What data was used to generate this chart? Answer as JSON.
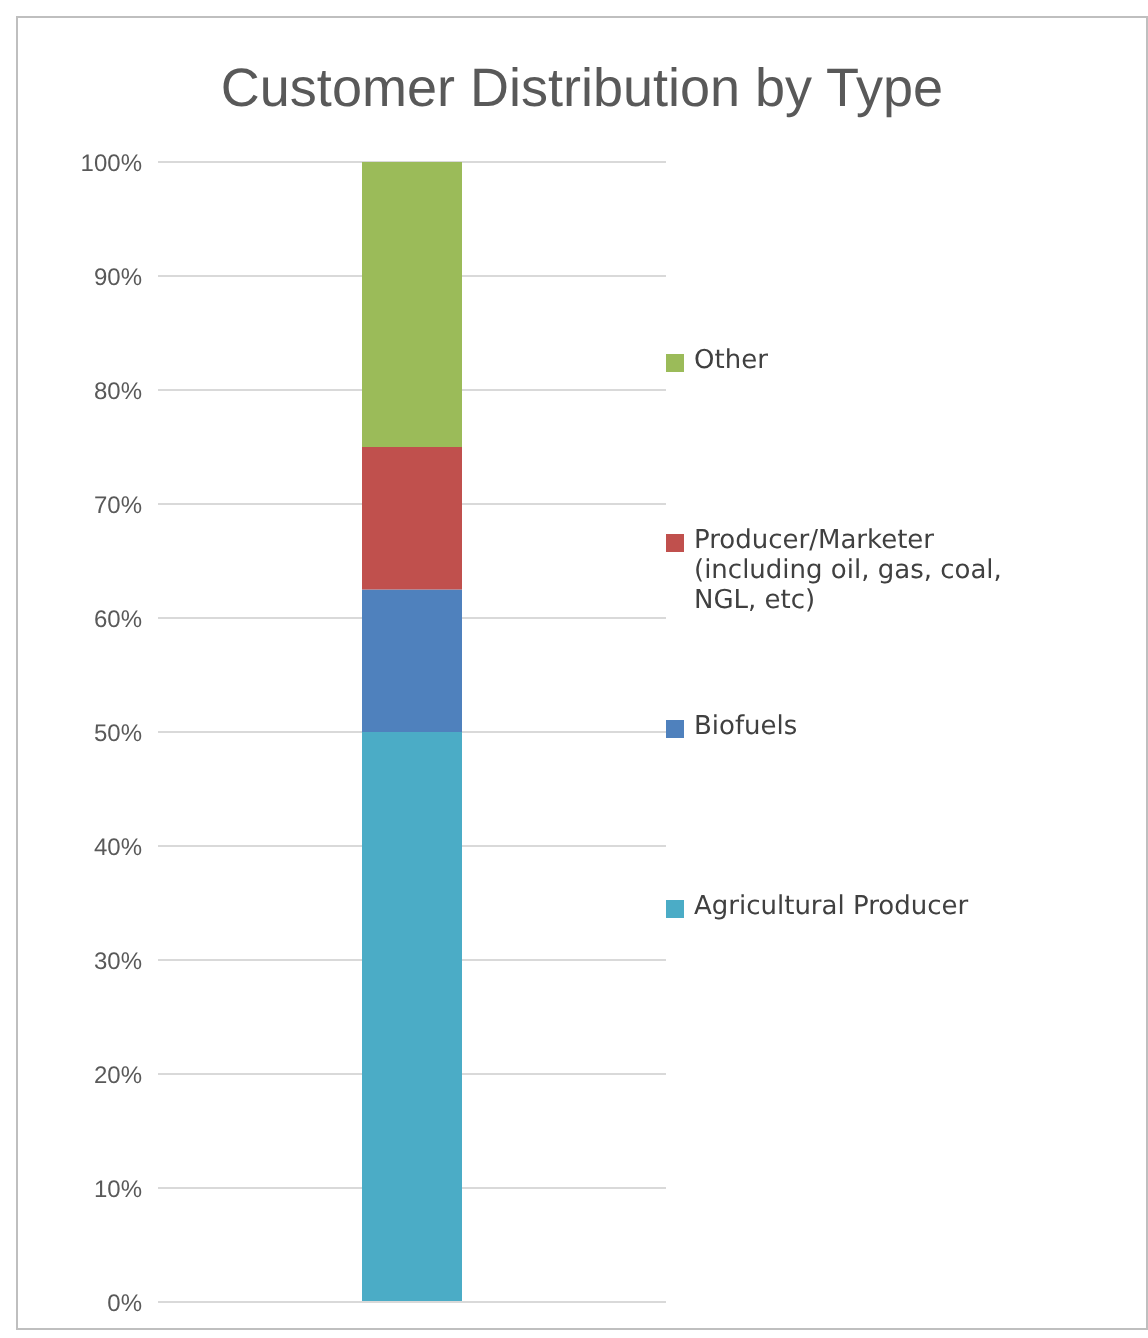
{
  "chart_data": {
    "type": "bar",
    "title": "Customer Distribution by Type",
    "stacked": true,
    "categories": [
      null
    ],
    "series": [
      {
        "name": "Agricultural Producer",
        "color": "#4bacc6",
        "values": [
          50
        ]
      },
      {
        "name": "Biofuels",
        "color": "#4f81bd",
        "values": [
          12.5
        ]
      },
      {
        "name": "Producer/Marketer (including oil, gas, coal, NGL, etc)",
        "color": "#c0504d",
        "values": [
          12.5
        ]
      },
      {
        "name": "Other",
        "color": "#9bbb59",
        "values": [
          25
        ]
      }
    ],
    "ylim": [
      0,
      100
    ],
    "yticks": [
      {
        "value": 0,
        "label": "0%"
      },
      {
        "value": 10,
        "label": "10%"
      },
      {
        "value": 20,
        "label": "20%"
      },
      {
        "value": 30,
        "label": "30%"
      },
      {
        "value": 40,
        "label": "40%"
      },
      {
        "value": 50,
        "label": "50%"
      },
      {
        "value": 60,
        "label": "60%"
      },
      {
        "value": 70,
        "label": "70%"
      },
      {
        "value": 80,
        "label": "80%"
      },
      {
        "value": 90,
        "label": "90%"
      },
      {
        "value": 100,
        "label": "100%"
      }
    ],
    "grid": "y",
    "legend": "right"
  }
}
